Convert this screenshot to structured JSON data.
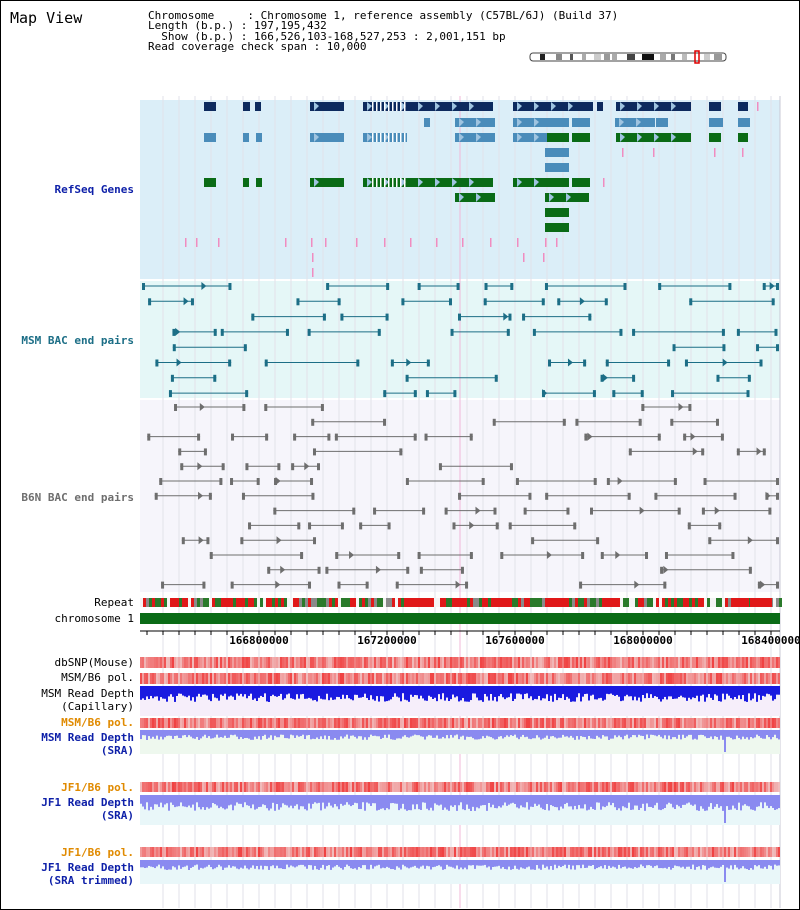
{
  "app": {
    "title": "Map View"
  },
  "info": {
    "line1": "Chromosome     : Chromosome 1, reference assembly (C57BL/6J) (Build 37)",
    "line2": "Length (b.p.) : 197,195,432",
    "line3": "  Show (b.p.) : 166,526,103-168,527,253 : 2,001,151 bp",
    "line4": "Read coverage check span : 10,000"
  },
  "tracks": {
    "refseq": "RefSeq Genes",
    "msm_bac": "MSM BAC end pairs",
    "b6n_bac": "B6N BAC end pairs",
    "repeat": "Repeat",
    "chromosome": "chromosome 1",
    "dbsnp": "dbSNP(Mouse)",
    "msm_b6_pol": "MSM/B6 pol.",
    "msm_depth_cap_1": "MSM Read Depth",
    "msm_depth_cap_2": "(Capillary)",
    "msm_b6_pol2": "MSM/B6 pol.",
    "msm_depth_sra_1": "MSM Read Depth",
    "msm_depth_sra_2": "(SRA)",
    "jf1_b6_pol": "JF1/B6 pol.",
    "jf1_depth_sra_1": "JF1 Read Depth",
    "jf1_depth_sra_2": "(SRA)",
    "jf1_b6_pol2": "JF1/B6 pol.",
    "jf1_depth_trim_1": "JF1 Read Depth",
    "jf1_depth_trim_2": "(SRA trimmed)"
  },
  "axis": {
    "ticks": [
      "166800000",
      "167200000",
      "167600000",
      "168000000",
      "168400000"
    ]
  },
  "colors": {
    "refseq_bg": "#dbeef8",
    "msm_bg": "#e5f7f7",
    "b6n_bg": "#f5f4fa",
    "gene_dark": "#0d2a5e",
    "gene_mid": "#4a8cba",
    "gene_green": "#0a6b16",
    "msm_line": "#1c6e86",
    "b6n_line": "#6e6e6e",
    "track_label_blue": "#0d1fa8",
    "track_label_gold": "#e08a00",
    "depth_blue": "#1a1ae0",
    "depth_light": "#8a8af0"
  }
}
